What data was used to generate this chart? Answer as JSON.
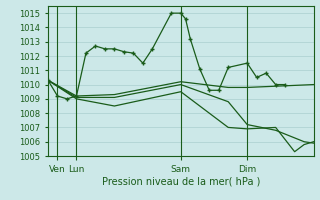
{
  "title": "Pression niveau de la mer( hPa )",
  "bg_color": "#cce8e8",
  "grid_color": "#aacfcf",
  "line_color": "#1a5c1a",
  "ylim": [
    1005,
    1015.5
  ],
  "yticks": [
    1005,
    1006,
    1007,
    1008,
    1009,
    1010,
    1011,
    1012,
    1013,
    1014,
    1015
  ],
  "xlim": [
    0,
    28
  ],
  "vlines_x": [
    1,
    3,
    14,
    21
  ],
  "xlabel_ticks": [
    1,
    3,
    14,
    21
  ],
  "xlabel_labels": [
    "Ven",
    "Lun",
    "Sam",
    "Dim"
  ],
  "series": [
    {
      "xs": [
        0,
        1,
        2,
        3,
        4,
        5,
        6,
        7,
        8,
        9,
        10,
        11,
        13,
        14,
        14.5,
        15,
        16,
        17,
        18,
        19,
        21,
        22,
        23,
        24,
        25
      ],
      "ys": [
        1010.3,
        1009.2,
        1009.0,
        1009.2,
        1012.2,
        1012.7,
        1012.5,
        1012.5,
        1012.3,
        1012.2,
        1011.5,
        1012.5,
        1015.0,
        1015.0,
        1014.6,
        1013.2,
        1011.1,
        1009.6,
        1009.6,
        1011.2,
        1011.5,
        1010.5,
        1010.8,
        1010.0,
        1010.0
      ],
      "marker": true
    },
    {
      "xs": [
        0,
        3,
        7,
        14,
        19,
        21,
        28
      ],
      "ys": [
        1010.3,
        1009.2,
        1009.3,
        1010.2,
        1009.8,
        1009.8,
        1010.0
      ],
      "marker": false
    },
    {
      "xs": [
        0,
        3,
        7,
        14,
        19,
        21,
        24,
        27,
        28
      ],
      "ys": [
        1010.3,
        1009.1,
        1009.1,
        1010.0,
        1008.8,
        1007.2,
        1006.8,
        1006.0,
        1005.9
      ],
      "marker": false
    },
    {
      "xs": [
        0,
        3,
        7,
        14,
        19,
        21,
        24,
        26,
        27,
        28
      ],
      "ys": [
        1010.3,
        1009.0,
        1008.5,
        1009.5,
        1007.0,
        1006.9,
        1007.0,
        1005.3,
        1005.8,
        1006.0
      ],
      "marker": false
    }
  ]
}
